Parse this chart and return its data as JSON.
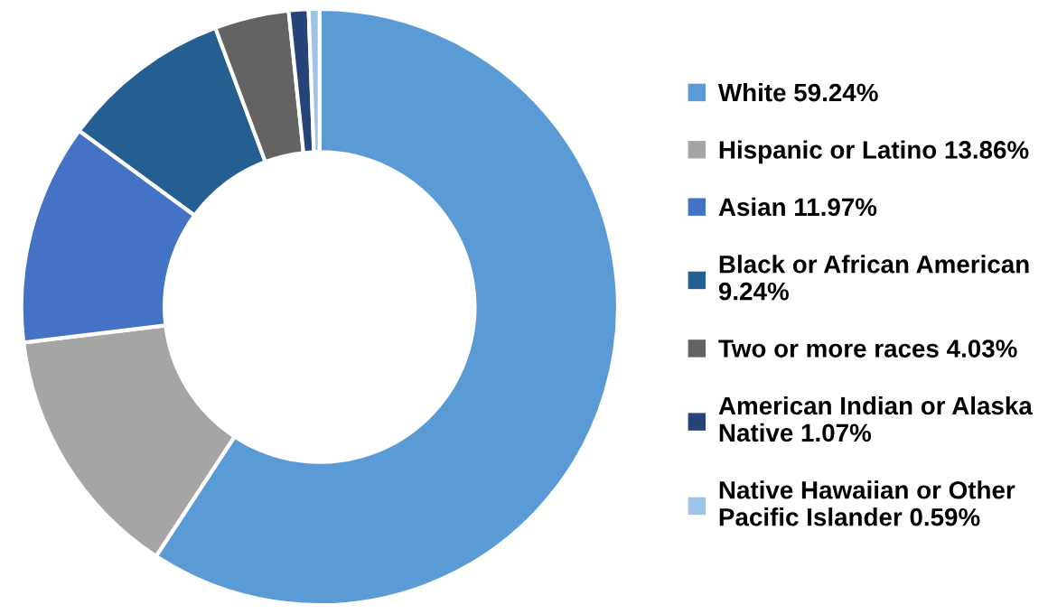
{
  "chart_data": {
    "type": "donut",
    "categories": [
      "White 59.24%",
      "Hispanic or Latino 13.86%",
      "Asian 11.97%",
      "Black or African American\n9.24%",
      "Two or more races 4.03%",
      "American Indian or Alaska\nNative 1.07%",
      "Native Hawaiian or Other\nPacific Islander 0.59%"
    ],
    "values": [
      59.24,
      13.86,
      11.97,
      9.24,
      4.03,
      1.07,
      0.59
    ],
    "colors": [
      "#5b9bd5",
      "#a5a5a5",
      "#4472c4",
      "#255e91",
      "#636363",
      "#264478",
      "#9dc3e6"
    ],
    "legend": "right"
  }
}
